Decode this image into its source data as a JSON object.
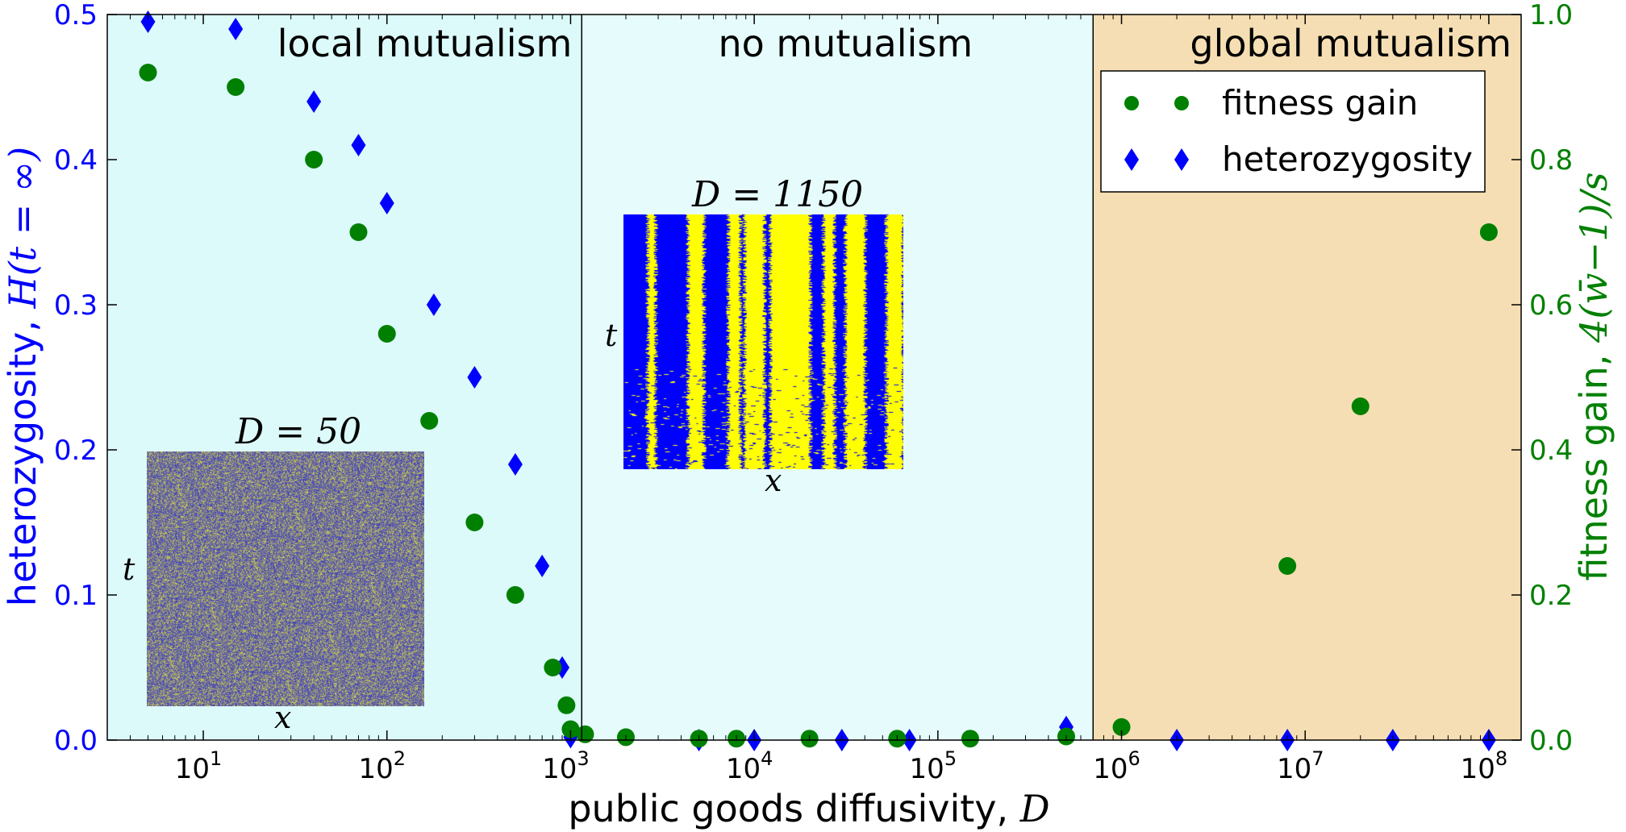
{
  "chart_data": {
    "type": "scatter",
    "xlabel": "public goods diffusivity, ",
    "xlabel_var": "D",
    "ylabel_left": "heterozygosity, ",
    "ylabel_left_var": "H(t = ∞)",
    "ylabel_right": "fitness gain, ",
    "ylabel_right_var": "4(w̄−1)/s",
    "x_scale": "log",
    "xlim": [
      3,
      150000000
    ],
    "ylim_left": [
      0,
      0.5
    ],
    "ylim_right": [
      0,
      1.0
    ],
    "x_ticks": [
      {
        "value": 10,
        "exp": "1"
      },
      {
        "value": 100,
        "exp": "2"
      },
      {
        "value": 1000,
        "exp": "3"
      },
      {
        "value": 10000,
        "exp": "4"
      },
      {
        "value": 100000,
        "exp": "5"
      },
      {
        "value": 1000000,
        "exp": "6"
      },
      {
        "value": 10000000,
        "exp": "7"
      },
      {
        "value": 100000000,
        "exp": "8"
      }
    ],
    "y_ticks_left": [
      "0.0",
      "0.1",
      "0.2",
      "0.3",
      "0.4",
      "0.5"
    ],
    "y_ticks_right": [
      "0.0",
      "0.2",
      "0.4",
      "0.6",
      "0.8",
      "1.0"
    ],
    "regions": [
      {
        "label": "local mutualism",
        "x_range": [
          3,
          1150
        ],
        "color": "#dcfafa"
      },
      {
        "label": "no mutualism",
        "x_range": [
          1150,
          700000
        ],
        "color": "#e6fcfc"
      },
      {
        "label": "global mutualism",
        "x_range": [
          700000,
          150000000
        ],
        "color": "#f5deb3"
      }
    ],
    "legend": {
      "position": "top-right",
      "entries": [
        "fitness gain",
        "heterozygosity"
      ]
    },
    "series": [
      {
        "name": "heterozygosity",
        "axis": "left",
        "marker": "diamond",
        "color": "#0000ff",
        "points": [
          [
            5,
            0.495
          ],
          [
            15,
            0.49
          ],
          [
            40,
            0.44
          ],
          [
            70,
            0.41
          ],
          [
            100,
            0.37
          ],
          [
            180,
            0.3
          ],
          [
            300,
            0.25
          ],
          [
            500,
            0.19
          ],
          [
            700,
            0.12
          ],
          [
            900,
            0.05
          ],
          [
            1000,
            0.002
          ],
          [
            5000,
            0.0
          ],
          [
            10000,
            0.0
          ],
          [
            30000,
            0.0
          ],
          [
            70000,
            0.0
          ],
          [
            500000,
            0.009
          ],
          [
            2000000,
            0.0
          ],
          [
            8000000,
            0.0
          ],
          [
            30000000,
            0.0
          ],
          [
            100000000,
            0.0
          ]
        ]
      },
      {
        "name": "fitness gain",
        "axis": "right",
        "marker": "circle",
        "color": "#008000",
        "points": [
          [
            5,
            0.92
          ],
          [
            15,
            0.9
          ],
          [
            40,
            0.8
          ],
          [
            70,
            0.7
          ],
          [
            100,
            0.56
          ],
          [
            170,
            0.44
          ],
          [
            300,
            0.3
          ],
          [
            500,
            0.2
          ],
          [
            800,
            0.1
          ],
          [
            950,
            0.048
          ],
          [
            1000,
            0.015
          ],
          [
            1200,
            0.008
          ],
          [
            2000,
            0.004
          ],
          [
            5000,
            0.002
          ],
          [
            8000,
            0.002
          ],
          [
            20000,
            0.002
          ],
          [
            60000,
            0.002
          ],
          [
            150000,
            0.002
          ],
          [
            500000,
            0.005
          ],
          [
            1000000,
            0.018
          ],
          [
            8000000,
            0.24
          ],
          [
            20000000,
            0.46
          ],
          [
            100000000,
            0.7
          ]
        ]
      }
    ],
    "insets": [
      {
        "title": "D = 50",
        "xlabel": "x",
        "ylabel": "t"
      },
      {
        "title": "D = 1150",
        "xlabel": "x",
        "ylabel": "t"
      }
    ]
  },
  "colors": {
    "left_axis": "#0000ff",
    "right_axis": "#008000",
    "inset_blue": "#0000ff",
    "inset_yellow": "#ffff00"
  }
}
